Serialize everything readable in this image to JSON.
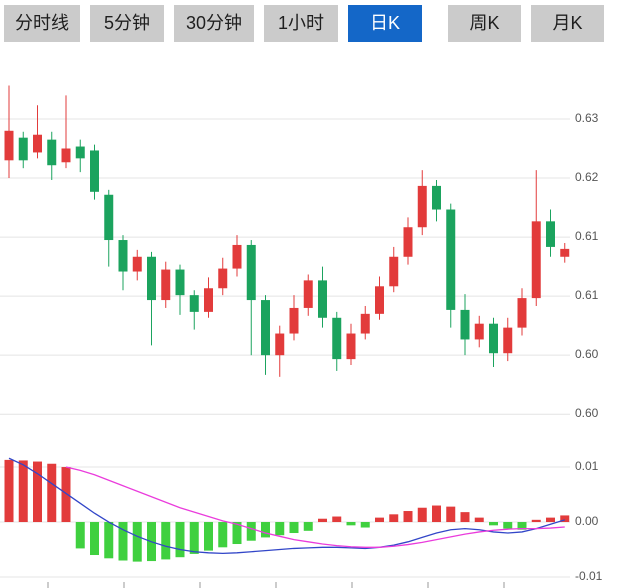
{
  "tabs": [
    {
      "label": "分时线",
      "active": false
    },
    {
      "label": "5分钟",
      "active": false
    },
    {
      "label": "30分钟",
      "active": false
    },
    {
      "label": "1小时",
      "active": false
    },
    {
      "label": "日K",
      "active": true
    },
    {
      "label": "周K",
      "active": false
    },
    {
      "label": "月K",
      "active": false
    }
  ],
  "colors": {
    "up": "#e23b3b",
    "down": "#1ba35e",
    "macd_up": "#e23b3b",
    "macd_down": "#3fd03f",
    "dif": "#3246c8",
    "dea": "#ea3cdc",
    "grid": "#e4e4e4",
    "axis_text": "#555555",
    "axis_tick": "#999999",
    "tab_bg": "#cbcbcb",
    "tab_text": "#1f1f1f",
    "tab_active_bg": "#1467c8",
    "tab_active_text": "#ffffff"
  },
  "chart_data": [
    {
      "type": "candlestick",
      "name": "daily-k-price-panel",
      "y_tick_labels": [
        "0.63",
        "0.62",
        "0.61",
        "0.61",
        "0.60",
        "0.60"
      ],
      "y_tick_prices": [
        0.63,
        0.624,
        0.618,
        0.612,
        0.606,
        0.6
      ],
      "ylim": [
        0.5985,
        0.6365
      ],
      "grid": true,
      "candles": [
        [
          0.6258,
          0.6334,
          0.624,
          0.6288
        ],
        [
          0.6281,
          0.6287,
          0.625,
          0.6258
        ],
        [
          0.6266,
          0.6314,
          0.626,
          0.6284
        ],
        [
          0.6279,
          0.6287,
          0.6238,
          0.6253
        ],
        [
          0.6256,
          0.6324,
          0.625,
          0.627
        ],
        [
          0.6272,
          0.6279,
          0.6246,
          0.626
        ],
        [
          0.6268,
          0.6274,
          0.6218,
          0.6226
        ],
        [
          0.6223,
          0.6228,
          0.615,
          0.6177
        ],
        [
          0.6177,
          0.6182,
          0.6126,
          0.6145
        ],
        [
          0.6145,
          0.6167,
          0.6136,
          0.616
        ],
        [
          0.616,
          0.6165,
          0.607,
          0.6116
        ],
        [
          0.6116,
          0.6155,
          0.6108,
          0.6147
        ],
        [
          0.6147,
          0.6152,
          0.6101,
          0.6121
        ],
        [
          0.6121,
          0.6126,
          0.6086,
          0.6104
        ],
        [
          0.6104,
          0.6139,
          0.6098,
          0.6128
        ],
        [
          0.6128,
          0.6159,
          0.6121,
          0.6148
        ],
        [
          0.6148,
          0.6182,
          0.614,
          0.6172
        ],
        [
          0.6172,
          0.6177,
          0.606,
          0.6116
        ],
        [
          0.6116,
          0.6121,
          0.604,
          0.606
        ],
        [
          0.606,
          0.609,
          0.6038,
          0.6082
        ],
        [
          0.6082,
          0.6121,
          0.6075,
          0.6108
        ],
        [
          0.6108,
          0.6142,
          0.61,
          0.6136
        ],
        [
          0.6136,
          0.615,
          0.6088,
          0.6098
        ],
        [
          0.6098,
          0.6104,
          0.6044,
          0.6056
        ],
        [
          0.6056,
          0.6092,
          0.605,
          0.6082
        ],
        [
          0.6082,
          0.611,
          0.6076,
          0.6102
        ],
        [
          0.6102,
          0.614,
          0.6096,
          0.613
        ],
        [
          0.613,
          0.617,
          0.6124,
          0.616
        ],
        [
          0.616,
          0.62,
          0.6152,
          0.619
        ],
        [
          0.619,
          0.6248,
          0.6182,
          0.6232
        ],
        [
          0.6232,
          0.6238,
          0.6196,
          0.6208
        ],
        [
          0.6208,
          0.6214,
          0.6088,
          0.6106
        ],
        [
          0.6106,
          0.6122,
          0.606,
          0.6076
        ],
        [
          0.6076,
          0.61,
          0.6068,
          0.6092
        ],
        [
          0.6092,
          0.6098,
          0.6048,
          0.6062
        ],
        [
          0.6062,
          0.6098,
          0.6054,
          0.6088
        ],
        [
          0.6088,
          0.6128,
          0.608,
          0.6118
        ],
        [
          0.6118,
          0.6248,
          0.611,
          0.6196
        ],
        [
          0.6196,
          0.6208,
          0.616,
          0.617
        ],
        [
          0.616,
          0.6174,
          0.6154,
          0.6168
        ]
      ]
    },
    {
      "type": "bar",
      "name": "macd-panel",
      "y_tick_labels": [
        "0.01",
        "0.00",
        "-0.01"
      ],
      "y_tick_values": [
        0.01,
        0.0,
        -0.01
      ],
      "ylim": [
        -0.012,
        0.0131
      ],
      "grid": true,
      "histogram": [
        0.0113,
        0.0112,
        0.011,
        0.0106,
        0.01,
        -0.0048,
        -0.006,
        -0.0066,
        -0.007,
        -0.0072,
        -0.0071,
        -0.0068,
        -0.0064,
        -0.0058,
        -0.0052,
        -0.0046,
        -0.004,
        -0.0034,
        -0.0028,
        -0.0024,
        -0.002,
        -0.0016,
        0.0006,
        0.001,
        -0.0006,
        -0.001,
        0.0008,
        0.0014,
        0.002,
        0.0026,
        0.003,
        0.0028,
        0.0018,
        0.0008,
        -0.0006,
        -0.0012,
        -0.0014,
        0.0004,
        0.0008,
        0.0012
      ],
      "series": [
        {
          "name": "DIF",
          "color_key": "dif",
          "values": [
            0.0116,
            0.0104,
            0.0088,
            0.007,
            0.0052,
            0.0034,
            0.0016,
            0.0,
            -0.0014,
            -0.0026,
            -0.0036,
            -0.0044,
            -0.005,
            -0.0054,
            -0.0056,
            -0.0057,
            -0.0056,
            -0.0054,
            -0.0052,
            -0.005,
            -0.0048,
            -0.0047,
            -0.0046,
            -0.0046,
            -0.0047,
            -0.0048,
            -0.0046,
            -0.0042,
            -0.0036,
            -0.0028,
            -0.002,
            -0.0014,
            -0.0012,
            -0.0014,
            -0.0018,
            -0.002,
            -0.0018,
            -0.0012,
            -0.0004,
            0.0004
          ]
        },
        {
          "name": "DEA",
          "color_key": "dea",
          "values": [
            null,
            null,
            null,
            null,
            0.01,
            0.0094,
            0.0086,
            0.0076,
            0.0066,
            0.0056,
            0.0046,
            0.0036,
            0.0026,
            0.0018,
            0.001,
            0.0002,
            -0.0004,
            -0.0012,
            -0.002,
            -0.0026,
            -0.0032,
            -0.0036,
            -0.004,
            -0.0043,
            -0.0045,
            -0.0046,
            -0.0046,
            -0.0044,
            -0.0041,
            -0.0037,
            -0.0032,
            -0.0027,
            -0.0022,
            -0.0018,
            -0.0015,
            -0.0013,
            -0.0012,
            -0.0012,
            -0.0011,
            -0.0009
          ]
        }
      ]
    }
  ]
}
